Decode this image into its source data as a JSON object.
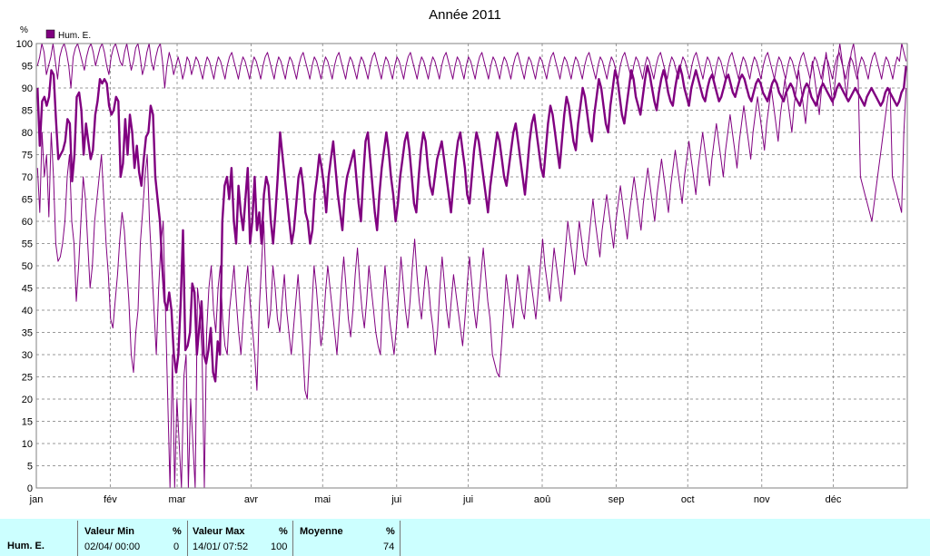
{
  "chart_data": {
    "type": "line",
    "title": "Année 2011",
    "ylabel": "%",
    "ylim": [
      0,
      100
    ],
    "yticks": [
      0,
      5,
      10,
      15,
      20,
      25,
      30,
      35,
      40,
      45,
      50,
      55,
      60,
      65,
      70,
      75,
      80,
      85,
      90,
      95,
      100
    ],
    "months": [
      "jan",
      "fév",
      "mar",
      "avr",
      "mai",
      "jui",
      "jui",
      "aoû",
      "sep",
      "oct",
      "nov",
      "déc"
    ],
    "grid": true,
    "legend_position": "top-left",
    "series": [
      {
        "name": "Hum. E.",
        "color": "#800080"
      }
    ],
    "mean_daily": [
      90,
      77,
      87,
      88,
      86,
      88,
      94,
      93,
      83,
      74,
      75,
      76,
      78,
      83,
      82,
      69,
      75,
      88,
      89,
      85,
      75,
      82,
      78,
      74,
      76,
      84,
      87,
      92,
      91,
      92,
      91,
      86,
      84,
      85,
      88,
      87,
      70,
      73,
      83,
      75,
      84,
      80,
      72,
      77,
      71,
      68,
      74,
      79,
      80,
      86,
      84,
      70,
      65,
      60,
      50,
      42,
      40,
      44,
      40,
      30,
      26,
      30,
      42,
      58,
      31,
      32,
      35,
      46,
      44,
      30,
      36,
      42,
      30,
      28,
      31,
      36,
      26,
      24,
      33,
      30,
      60,
      68,
      70,
      65,
      72,
      60,
      55,
      68,
      62,
      58,
      65,
      72,
      55,
      60,
      70,
      58,
      62,
      55,
      66,
      70,
      68,
      60,
      55,
      62,
      70,
      80,
      75,
      70,
      65,
      60,
      55,
      58,
      64,
      70,
      72,
      68,
      62,
      60,
      55,
      58,
      66,
      70,
      75,
      72,
      68,
      62,
      70,
      74,
      78,
      72,
      66,
      62,
      58,
      66,
      70,
      72,
      74,
      76,
      70,
      64,
      60,
      70,
      78,
      80,
      74,
      68,
      62,
      58,
      66,
      72,
      76,
      80,
      76,
      70,
      66,
      60,
      64,
      70,
      74,
      78,
      80,
      76,
      70,
      64,
      62,
      70,
      76,
      80,
      78,
      72,
      68,
      66,
      70,
      74,
      76,
      78,
      74,
      70,
      66,
      62,
      68,
      74,
      78,
      80,
      76,
      72,
      66,
      64,
      70,
      76,
      80,
      78,
      74,
      70,
      66,
      62,
      68,
      72,
      76,
      80,
      78,
      74,
      70,
      68,
      72,
      76,
      80,
      82,
      78,
      74,
      70,
      66,
      72,
      78,
      82,
      84,
      80,
      76,
      72,
      70,
      76,
      82,
      86,
      84,
      80,
      76,
      72,
      78,
      84,
      88,
      86,
      82,
      78,
      76,
      82,
      86,
      90,
      88,
      84,
      80,
      78,
      84,
      88,
      92,
      90,
      86,
      82,
      80,
      86,
      90,
      94,
      92,
      88,
      84,
      82,
      86,
      90,
      94,
      92,
      88,
      86,
      84,
      88,
      92,
      95,
      93,
      90,
      87,
      85,
      89,
      92,
      94,
      92,
      89,
      87,
      86,
      90,
      93,
      95,
      93,
      90,
      88,
      86,
      90,
      92,
      94,
      92,
      90,
      88,
      87,
      90,
      92,
      93,
      91,
      89,
      87,
      88,
      90,
      92,
      93,
      91,
      89,
      88,
      90,
      92,
      93,
      92,
      90,
      88,
      87,
      89,
      91,
      92,
      91,
      89,
      88,
      87,
      89,
      91,
      92,
      91,
      89,
      88,
      87,
      89,
      90,
      91,
      90,
      88,
      87,
      86,
      88,
      90,
      91,
      90,
      88,
      87,
      86,
      88,
      90,
      91,
      90,
      89,
      88,
      87,
      88,
      90,
      91,
      90,
      89,
      88,
      87,
      88,
      89,
      90,
      89,
      88,
      87,
      86,
      88,
      89,
      90,
      89,
      88,
      87,
      86,
      87,
      89,
      90,
      89,
      88,
      87,
      86,
      87,
      89,
      90,
      95
    ],
    "min_daily": [
      72,
      62,
      80,
      70,
      75,
      61,
      80,
      70,
      55,
      51,
      52,
      55,
      60,
      70,
      75,
      60,
      55,
      42,
      50,
      60,
      70,
      65,
      55,
      45,
      50,
      60,
      65,
      70,
      75,
      65,
      55,
      48,
      38,
      36,
      42,
      48,
      56,
      62,
      58,
      50,
      42,
      30,
      26,
      35,
      40,
      55,
      62,
      70,
      75,
      60,
      50,
      40,
      30,
      45,
      55,
      60,
      40,
      20,
      0,
      30,
      0,
      20,
      10,
      0,
      25,
      30,
      0,
      20,
      10,
      0,
      45,
      40,
      30,
      0,
      35,
      45,
      50,
      40,
      35,
      45,
      50,
      38,
      32,
      30,
      40,
      45,
      50,
      42,
      35,
      30,
      38,
      45,
      50,
      42,
      36,
      30,
      22,
      40,
      50,
      60,
      45,
      36,
      40,
      50,
      45,
      38,
      35,
      42,
      48,
      40,
      35,
      30,
      36,
      42,
      48,
      40,
      32,
      22,
      20,
      30,
      40,
      50,
      45,
      38,
      32,
      36,
      44,
      50,
      45,
      40,
      35,
      30,
      38,
      46,
      52,
      45,
      38,
      34,
      40,
      48,
      54,
      46,
      40,
      36,
      42,
      50,
      45,
      40,
      35,
      32,
      30,
      42,
      50,
      44,
      38,
      34,
      30,
      36,
      44,
      52,
      46,
      40,
      36,
      42,
      50,
      56,
      48,
      42,
      38,
      44,
      50,
      46,
      40,
      36,
      30,
      35,
      45,
      52,
      46,
      40,
      36,
      42,
      48,
      44,
      40,
      36,
      32,
      38,
      46,
      52,
      46,
      40,
      36,
      42,
      48,
      54,
      48,
      42,
      38,
      30,
      28,
      26,
      25,
      32,
      40,
      48,
      44,
      40,
      36,
      42,
      48,
      44,
      40,
      38,
      44,
      50,
      46,
      42,
      38,
      44,
      50,
      56,
      50,
      46,
      42,
      48,
      54,
      50,
      46,
      42,
      48,
      54,
      60,
      56,
      52,
      48,
      54,
      60,
      56,
      52,
      50,
      55,
      60,
      65,
      60,
      56,
      52,
      58,
      62,
      66,
      62,
      58,
      54,
      60,
      64,
      68,
      64,
      60,
      56,
      62,
      66,
      70,
      66,
      62,
      58,
      64,
      68,
      72,
      68,
      64,
      60,
      66,
      70,
      74,
      70,
      66,
      62,
      68,
      72,
      76,
      72,
      68,
      64,
      70,
      74,
      78,
      74,
      70,
      66,
      72,
      76,
      80,
      76,
      72,
      68,
      74,
      78,
      82,
      78,
      74,
      70,
      76,
      80,
      84,
      80,
      76,
      72,
      78,
      82,
      86,
      82,
      78,
      74,
      80,
      84,
      88,
      84,
      80,
      76,
      82,
      86,
      90,
      86,
      82,
      78,
      84,
      88,
      92,
      88,
      84,
      80,
      86,
      90,
      94,
      90,
      86,
      82,
      88,
      92,
      96,
      92,
      88,
      84,
      90,
      94,
      98,
      94,
      90,
      86,
      92,
      96,
      100,
      96,
      92,
      88,
      94,
      98,
      100,
      96,
      92,
      70,
      68,
      66,
      64,
      62,
      60,
      64,
      68,
      72,
      76,
      80,
      84,
      88,
      90,
      70,
      68,
      66,
      64,
      62,
      80,
      90
    ],
    "max_daily": [
      95,
      97,
      100,
      98,
      93,
      95,
      97,
      100,
      96,
      92,
      97,
      99,
      100,
      98,
      95,
      90,
      97,
      99,
      100,
      98,
      96,
      94,
      97,
      99,
      100,
      98,
      95,
      97,
      99,
      100,
      98,
      95,
      93,
      97,
      99,
      100,
      98,
      96,
      95,
      98,
      100,
      97,
      94,
      96,
      99,
      100,
      97,
      93,
      95,
      98,
      100,
      96,
      94,
      97,
      99,
      100,
      96,
      90,
      95,
      98,
      96,
      93,
      95,
      97,
      95,
      92,
      94,
      97,
      96,
      93,
      95,
      97,
      96,
      94,
      92,
      95,
      97,
      96,
      94,
      92,
      95,
      97,
      96,
      94,
      92,
      95,
      97,
      98,
      96,
      94,
      92,
      95,
      97,
      96,
      94,
      92,
      95,
      97,
      96,
      94,
      92,
      95,
      97,
      98,
      96,
      94,
      92,
      95,
      97,
      96,
      94,
      92,
      95,
      97,
      96,
      94,
      92,
      95,
      97,
      98,
      96,
      94,
      92,
      95,
      97,
      96,
      94,
      92,
      95,
      97,
      96,
      94,
      92,
      95,
      97,
      98,
      96,
      94,
      92,
      95,
      97,
      96,
      94,
      92,
      95,
      97,
      96,
      94,
      92,
      95,
      97,
      98,
      96,
      94,
      92,
      95,
      97,
      96,
      94,
      92,
      95,
      97,
      96,
      94,
      92,
      95,
      97,
      98,
      96,
      94,
      92,
      95,
      97,
      96,
      94,
      92,
      95,
      97,
      96,
      94,
      92,
      95,
      97,
      98,
      96,
      94,
      92,
      95,
      97,
      96,
      94,
      92,
      95,
      97,
      96,
      94,
      92,
      95,
      97,
      98,
      96,
      94,
      92,
      95,
      97,
      96,
      94,
      92,
      95,
      97,
      96,
      94,
      92,
      95,
      97,
      98,
      96,
      94,
      92,
      95,
      97,
      96,
      94,
      92,
      95,
      97,
      96,
      94,
      92,
      95,
      97,
      98,
      96,
      94,
      92,
      95,
      97,
      96,
      94,
      92,
      95,
      97,
      96,
      94,
      92,
      95,
      97,
      98,
      96,
      94,
      92,
      95,
      97,
      96,
      94,
      92,
      95,
      97,
      96,
      94,
      92,
      95,
      97,
      98,
      96,
      94,
      92,
      95,
      97,
      96,
      94,
      92,
      95,
      97,
      96,
      94,
      92,
      95,
      97,
      98,
      96,
      94,
      92,
      95,
      97,
      96,
      94,
      92,
      95,
      97,
      96,
      94,
      92,
      95,
      97,
      98,
      96,
      94,
      92,
      95,
      97,
      96,
      94,
      92,
      95,
      97,
      96,
      94,
      92,
      95,
      97,
      98,
      96,
      94,
      92,
      95,
      97,
      96,
      94,
      92,
      95,
      97,
      96,
      94,
      92,
      95,
      97,
      98,
      96,
      94,
      92,
      95,
      97,
      96,
      94,
      92,
      95,
      97,
      96,
      94,
      92,
      95,
      97,
      98,
      96,
      94,
      92,
      95,
      97,
      96,
      94,
      92,
      95,
      97,
      96,
      94,
      92,
      95,
      97,
      98,
      96,
      94,
      92,
      95,
      97,
      96,
      94,
      92,
      95,
      97,
      96,
      94,
      92,
      95,
      97,
      98,
      96,
      94,
      92,
      95,
      97,
      96,
      94,
      92,
      95,
      97,
      96,
      100,
      98,
      96
    ]
  },
  "stats": {
    "row_label": "Hum. E.",
    "min": {
      "header": "Valeur Min",
      "unit": "%",
      "when": "02/04/  00:00",
      "value": "0"
    },
    "max": {
      "header": "Valeur Max",
      "unit": "%",
      "when": "14/01/  07:52",
      "value": "100"
    },
    "avg": {
      "header": "Moyenne",
      "unit": "%",
      "value": "74"
    }
  }
}
